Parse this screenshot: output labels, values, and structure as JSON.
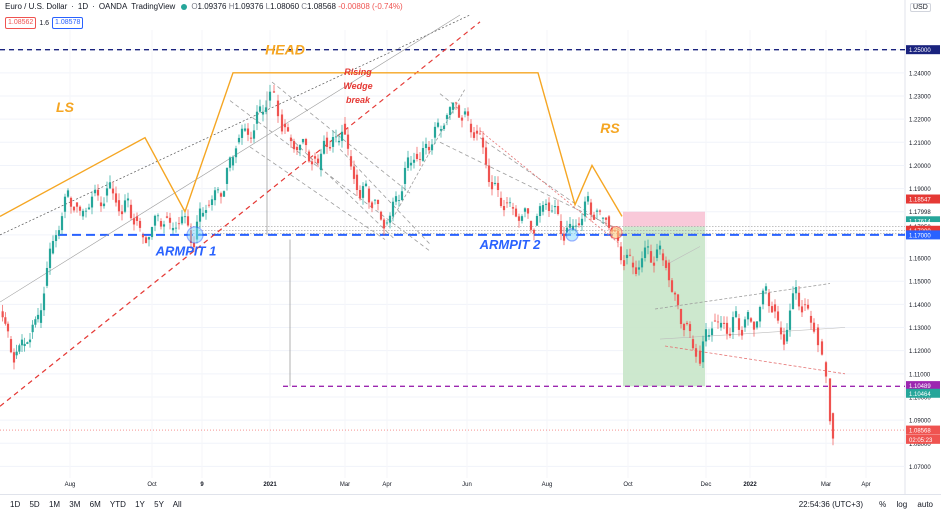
{
  "header": {
    "symbol": "Euro / U.S. Dollar",
    "interval": "1D",
    "broker": "OANDA",
    "platform": "TradingView",
    "ohlc": {
      "o": "1.09376",
      "h": "1.09376",
      "l": "1.08060",
      "c": "1.08568",
      "chg": "-0.00808 (-0.74%)"
    },
    "sell_price": "1.08562",
    "spread": "1.6",
    "buy_price": "1.08578"
  },
  "currency_button": "USD",
  "timeframes": [
    "1D",
    "5D",
    "1M",
    "3M",
    "6M",
    "YTD",
    "1Y",
    "5Y",
    "All"
  ],
  "clock": "22:54:36 (UTC+3)",
  "options": [
    "%",
    "log",
    "auto"
  ],
  "chart_data": {
    "type": "candlestick",
    "ylim": [
      1.065,
      1.2585
    ],
    "y_ticks": [
      1.07,
      1.08,
      1.09,
      1.1,
      1.11,
      1.12,
      1.13,
      1.14,
      1.15,
      1.16,
      1.17,
      1.18,
      1.19,
      1.2,
      1.21,
      1.22,
      1.23,
      1.24,
      1.25
    ],
    "x_ticks": [
      "Aug",
      "Oct",
      "9",
      "2021",
      "Mar",
      "Apr",
      "Jun",
      "Aug",
      "Oct",
      "Dec",
      "2022",
      "Mar",
      "Apr"
    ],
    "price_path": [
      [
        0,
        1.137
      ],
      [
        8,
        1.125
      ],
      [
        14,
        1.118
      ],
      [
        22,
        1.122
      ],
      [
        30,
        1.128
      ],
      [
        38,
        1.132
      ],
      [
        44,
        1.148
      ],
      [
        50,
        1.162
      ],
      [
        56,
        1.17
      ],
      [
        62,
        1.18
      ],
      [
        68,
        1.186
      ],
      [
        74,
        1.184
      ],
      [
        80,
        1.178
      ],
      [
        86,
        1.181
      ],
      [
        92,
        1.188
      ],
      [
        98,
        1.184
      ],
      [
        104,
        1.187
      ],
      [
        110,
        1.19
      ],
      [
        116,
        1.185
      ],
      [
        122,
        1.18
      ],
      [
        128,
        1.183
      ],
      [
        134,
        1.178
      ],
      [
        140,
        1.17
      ],
      [
        146,
        1.168
      ],
      [
        152,
        1.174
      ],
      [
        158,
        1.176
      ],
      [
        164,
        1.178
      ],
      [
        170,
        1.172
      ],
      [
        176,
        1.175
      ],
      [
        182,
        1.178
      ],
      [
        188,
        1.172
      ],
      [
        194,
        1.168
      ],
      [
        200,
        1.178
      ],
      [
        206,
        1.183
      ],
      [
        212,
        1.185
      ],
      [
        218,
        1.188
      ],
      [
        224,
        1.192
      ],
      [
        230,
        1.2
      ],
      [
        236,
        1.21
      ],
      [
        242,
        1.215
      ],
      [
        248,
        1.212
      ],
      [
        254,
        1.218
      ],
      [
        260,
        1.222
      ],
      [
        266,
        1.228
      ],
      [
        270,
        1.232
      ],
      [
        274,
        1.228
      ],
      [
        278,
        1.222
      ],
      [
        282,
        1.218
      ],
      [
        288,
        1.212
      ],
      [
        294,
        1.208
      ],
      [
        300,
        1.21
      ],
      [
        306,
        1.206
      ],
      [
        312,
        1.204
      ],
      [
        318,
        1.198
      ],
      [
        324,
        1.212
      ],
      [
        330,
        1.208
      ],
      [
        336,
        1.21
      ],
      [
        342,
        1.218
      ],
      [
        348,
        1.204
      ],
      [
        354,
        1.196
      ],
      [
        360,
        1.186
      ],
      [
        366,
        1.19
      ],
      [
        372,
        1.185
      ],
      [
        378,
        1.18
      ],
      [
        384,
        1.175
      ],
      [
        390,
        1.178
      ],
      [
        396,
        1.185
      ],
      [
        402,
        1.192
      ],
      [
        408,
        1.2
      ],
      [
        414,
        1.205
      ],
      [
        420,
        1.202
      ],
      [
        426,
        1.208
      ],
      [
        432,
        1.212
      ],
      [
        438,
        1.215
      ],
      [
        444,
        1.22
      ],
      [
        450,
        1.224
      ],
      [
        456,
        1.226
      ],
      [
        462,
        1.222
      ],
      [
        468,
        1.218
      ],
      [
        474,
        1.215
      ],
      [
        480,
        1.212
      ],
      [
        486,
        1.2
      ],
      [
        492,
        1.192
      ],
      [
        498,
        1.186
      ],
      [
        504,
        1.184
      ],
      [
        510,
        1.182
      ],
      [
        516,
        1.178
      ],
      [
        522,
        1.18
      ],
      [
        528,
        1.176
      ],
      [
        534,
        1.174
      ],
      [
        540,
        1.18
      ],
      [
        546,
        1.184
      ],
      [
        552,
        1.182
      ],
      [
        558,
        1.176
      ],
      [
        564,
        1.171
      ],
      [
        570,
        1.172
      ],
      [
        576,
        1.175
      ],
      [
        582,
        1.178
      ],
      [
        588,
        1.184
      ],
      [
        594,
        1.18
      ],
      [
        600,
        1.177
      ],
      [
        606,
        1.178
      ],
      [
        612,
        1.172
      ],
      [
        618,
        1.165
      ],
      [
        624,
        1.16
      ],
      [
        630,
        1.158
      ],
      [
        636,
        1.155
      ],
      [
        642,
        1.16
      ],
      [
        648,
        1.163
      ],
      [
        654,
        1.16
      ],
      [
        660,
        1.162
      ],
      [
        666,
        1.158
      ],
      [
        672,
        1.145
      ],
      [
        678,
        1.138
      ],
      [
        684,
        1.132
      ],
      [
        690,
        1.125
      ],
      [
        696,
        1.12
      ],
      [
        700,
        1.115
      ],
      [
        706,
        1.126
      ],
      [
        712,
        1.133
      ],
      [
        718,
        1.13
      ],
      [
        724,
        1.132
      ],
      [
        730,
        1.128
      ],
      [
        736,
        1.134
      ],
      [
        742,
        1.13
      ],
      [
        748,
        1.134
      ],
      [
        754,
        1.13
      ],
      [
        760,
        1.14
      ],
      [
        766,
        1.145
      ],
      [
        772,
        1.14
      ],
      [
        778,
        1.13
      ],
      [
        784,
        1.124
      ],
      [
        790,
        1.138
      ],
      [
        796,
        1.145
      ],
      [
        802,
        1.14
      ],
      [
        808,
        1.135
      ],
      [
        814,
        1.13
      ],
      [
        818,
        1.124
      ],
      [
        822,
        1.115
      ],
      [
        826,
        1.108
      ],
      [
        830,
        1.093
      ],
      [
        833,
        1.082
      ]
    ],
    "annotations": [
      {
        "text": "HEAD",
        "x": 285,
        "y": 1.248,
        "color": "#f5a623"
      },
      {
        "text": "LS",
        "x": 65,
        "y": 1.223,
        "color": "#f5a623"
      },
      {
        "text": "RS",
        "x": 610,
        "y": 1.214,
        "color": "#f5a623"
      },
      {
        "text": "Rising",
        "x": 358,
        "y": 1.239,
        "color": "#e53935"
      },
      {
        "text": "Wedge",
        "x": 358,
        "y": 1.233,
        "color": "#e53935"
      },
      {
        "text": "break",
        "x": 358,
        "y": 1.227,
        "color": "#e53935"
      },
      {
        "text": "ARMPIT 1",
        "x": 186,
        "y": 1.161,
        "color": "#2962ff"
      },
      {
        "text": "ARMPIT 2",
        "x": 510,
        "y": 1.164,
        "color": "#2962ff"
      }
    ],
    "labels": {
      "level_125": "1.25000",
      "level_117": "1.17000",
      "level_11849": "1.18547",
      "level_11800": "1.17998",
      "level_11761": "1.17614",
      "level_11736": "1.17358",
      "level_11720": "1.17200",
      "level_1104": "1.10489",
      "level_11046": "1.10464",
      "last": "1.08568",
      "countdown": "02:05:23"
    },
    "colors": {
      "up": "#26a69a",
      "down": "#ef5350",
      "neckline": "#2962ff",
      "hs": "#f5a623",
      "wedge": "#e53935",
      "target": "#9c27b0"
    }
  }
}
